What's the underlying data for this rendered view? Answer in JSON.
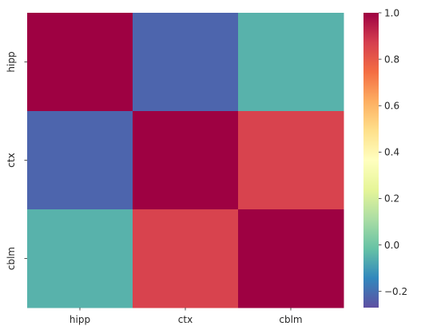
{
  "chart_data": {
    "type": "heatmap",
    "x_categories": [
      "hipp",
      "ctx",
      "cblm"
    ],
    "y_categories": [
      "hipp",
      "ctx",
      "cblm"
    ],
    "values": [
      [
        1.0,
        -0.22,
        -0.05
      ],
      [
        -0.22,
        1.0,
        0.86
      ],
      [
        -0.05,
        0.86,
        1.0
      ]
    ],
    "title": "",
    "xlabel": "",
    "ylabel": "",
    "colormap": "Spectral_r",
    "vmin": -0.27,
    "vmax": 1.0,
    "colorbar_ticks": [
      -0.2,
      0.0,
      0.2,
      0.4,
      0.6,
      0.8,
      1.0
    ],
    "colorbar_tick_labels": [
      "−0.2",
      "0.0",
      "0.2",
      "0.4",
      "0.6",
      "0.8",
      "1.0"
    ],
    "colorbar_position": "right",
    "grid": false
  }
}
